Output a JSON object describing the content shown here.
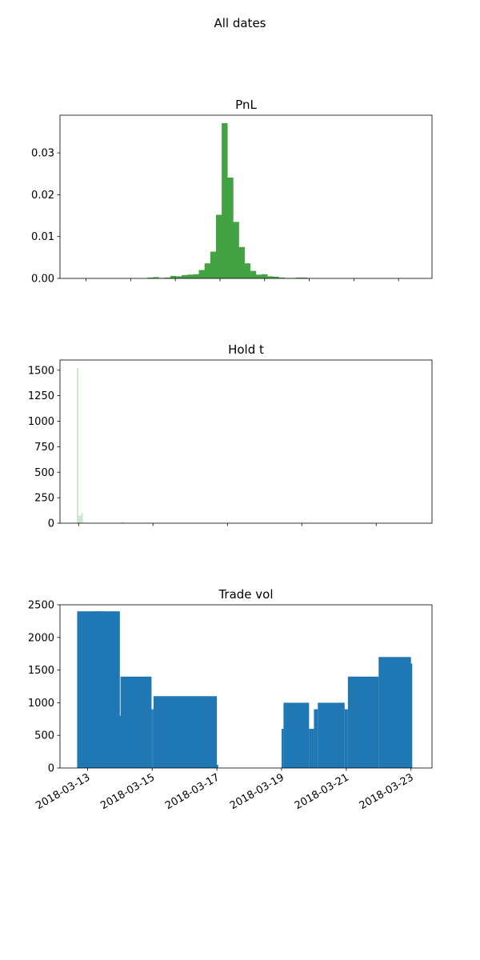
{
  "figure": {
    "title": "All dates"
  },
  "chart_data": [
    {
      "type": "bar",
      "title": "PnL",
      "color": "#43a343",
      "ylim": [
        0,
        0.039
      ],
      "yticks": [
        0.0,
        0.01,
        0.02,
        0.03
      ],
      "ytick_labels": [
        "0.00",
        "0.01",
        "0.02",
        "0.03"
      ],
      "xlim": [
        0,
        1
      ],
      "xticks_positions": [
        0.07,
        0.19,
        0.31,
        0.43,
        0.55,
        0.67,
        0.79,
        0.91,
        1.03
      ],
      "xtick_labels_visible": false,
      "bin_range": [
        0.235,
        0.665
      ],
      "values": [
        0.0002,
        0.0003,
        0.0001,
        0.0002,
        0.0006,
        0.0005,
        0.0008,
        0.0009,
        0.001,
        0.002,
        0.0036,
        0.0064,
        0.0152,
        0.0371,
        0.0241,
        0.0135,
        0.0075,
        0.0036,
        0.0018,
        0.0009,
        0.001,
        0.0005,
        0.0004,
        0.0002,
        0.0001,
        0.0001,
        0.0002,
        0.0002
      ]
    },
    {
      "type": "bar",
      "title": "Hold t",
      "color": "#cde5cd",
      "ylim": [
        0,
        1600
      ],
      "yticks": [
        0,
        250,
        500,
        750,
        1000,
        1250,
        1500
      ],
      "ytick_labels": [
        "0",
        "250",
        "500",
        "750",
        "1000",
        "1250",
        "1500"
      ],
      "xlim": [
        0,
        1
      ],
      "xticks_positions": [
        0.05,
        0.25,
        0.45,
        0.65,
        0.85,
        1.05
      ],
      "xtick_labels_visible": false,
      "bin_range": [
        0.045,
        0.205
      ],
      "values": [
        1520,
        75,
        75,
        100,
        0,
        0,
        0,
        0,
        0,
        0,
        0,
        0,
        0,
        0,
        0,
        0,
        0,
        0,
        0,
        0,
        0,
        0,
        0,
        0,
        0,
        0,
        0,
        0,
        0,
        0,
        15,
        0,
        0,
        0,
        0,
        0,
        0,
        0,
        0,
        0
      ]
    },
    {
      "type": "bar",
      "title": "Trade vol",
      "color": "#1f77b4",
      "ylim": [
        0,
        2500
      ],
      "yticks": [
        0,
        500,
        1000,
        1500,
        2000,
        2500
      ],
      "ytick_labels": [
        "0",
        "500",
        "1000",
        "1500",
        "2000",
        "2500"
      ],
      "xlim": [
        12.15,
        23.65
      ],
      "xticks": [
        13,
        15,
        17,
        19,
        21,
        23
      ],
      "xtick_labels": [
        "2018-03-13",
        "2018-03-15",
        "2018-03-17",
        "2018-03-19",
        "2018-03-21",
        "2018-03-23"
      ],
      "bars": [
        {
          "x0": 12.68,
          "x1": 13.5,
          "v": 2400
        },
        {
          "x0": 12.98,
          "x1": 13.02,
          "v": 1200
        },
        {
          "x0": 13.02,
          "x1": 13.1,
          "v": 400
        },
        {
          "x0": 13.1,
          "x1": 13.18,
          "v": 1200
        },
        {
          "x0": 13.12,
          "x1": 13.2,
          "v": 1300
        },
        {
          "x0": 13.2,
          "x1": 14.0,
          "v": 2400
        },
        {
          "x0": 13.98,
          "x1": 14.04,
          "v": 800
        },
        {
          "x0": 14.02,
          "x1": 14.98,
          "v": 1400
        },
        {
          "x0": 14.98,
          "x1": 15.04,
          "v": 900
        },
        {
          "x0": 15.04,
          "x1": 17.0,
          "v": 1100
        },
        {
          "x0": 16.98,
          "x1": 17.04,
          "v": 50
        },
        {
          "x0": 19.0,
          "x1": 19.06,
          "v": 600
        },
        {
          "x0": 19.06,
          "x1": 19.85,
          "v": 1000
        },
        {
          "x0": 19.85,
          "x1": 20.0,
          "v": 600
        },
        {
          "x0": 20.0,
          "x1": 20.12,
          "v": 900
        },
        {
          "x0": 20.12,
          "x1": 20.95,
          "v": 1000
        },
        {
          "x0": 20.95,
          "x1": 21.05,
          "v": 900
        },
        {
          "x0": 21.05,
          "x1": 22.0,
          "v": 1400
        },
        {
          "x0": 22.0,
          "x1": 23.0,
          "v": 1700
        },
        {
          "x0": 22.96,
          "x1": 23.04,
          "v": 1600
        }
      ]
    }
  ]
}
